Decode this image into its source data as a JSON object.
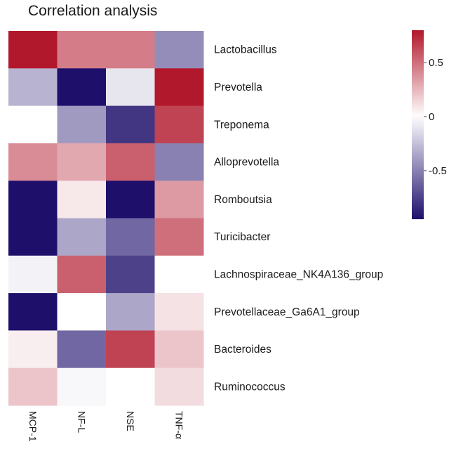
{
  "chart_data": {
    "type": "heatmap",
    "title": "Correlation analysis",
    "rows": [
      "Lactobacillus",
      "Prevotella",
      "Treponema",
      "Alloprevotella",
      "Romboutsia",
      "Turicibacter",
      "Lachnospiraceae_NK4A136_group",
      "Prevotellaceae_Ga6A1_group",
      "Bacteroides",
      "Ruminococcus"
    ],
    "columns": [
      "MCP-1",
      "NF-L",
      "NSE",
      "TNF-α"
    ],
    "values": [
      [
        0.8,
        0.45,
        0.45,
        -0.45
      ],
      [
        -0.3,
        -0.95,
        -0.1,
        0.8
      ],
      [
        0.0,
        -0.4,
        -0.8,
        0.65
      ],
      [
        0.4,
        0.3,
        0.55,
        -0.5
      ],
      [
        -0.95,
        0.08,
        -0.95,
        0.35
      ],
      [
        -0.95,
        -0.35,
        -0.6,
        0.5
      ],
      [
        -0.05,
        0.55,
        -0.75,
        0.0
      ],
      [
        -0.95,
        0.0,
        -0.35,
        0.1
      ],
      [
        0.06,
        -0.6,
        0.65,
        0.2
      ],
      [
        0.2,
        -0.03,
        0.0,
        0.12
      ]
    ],
    "colorbar": {
      "min": -0.95,
      "max": 0.8,
      "ticks": [
        0.5,
        0,
        -0.5
      ],
      "colors": {
        "high": "#b2182b",
        "mid": "#ffffff",
        "low": "#1e0f6b"
      }
    }
  }
}
